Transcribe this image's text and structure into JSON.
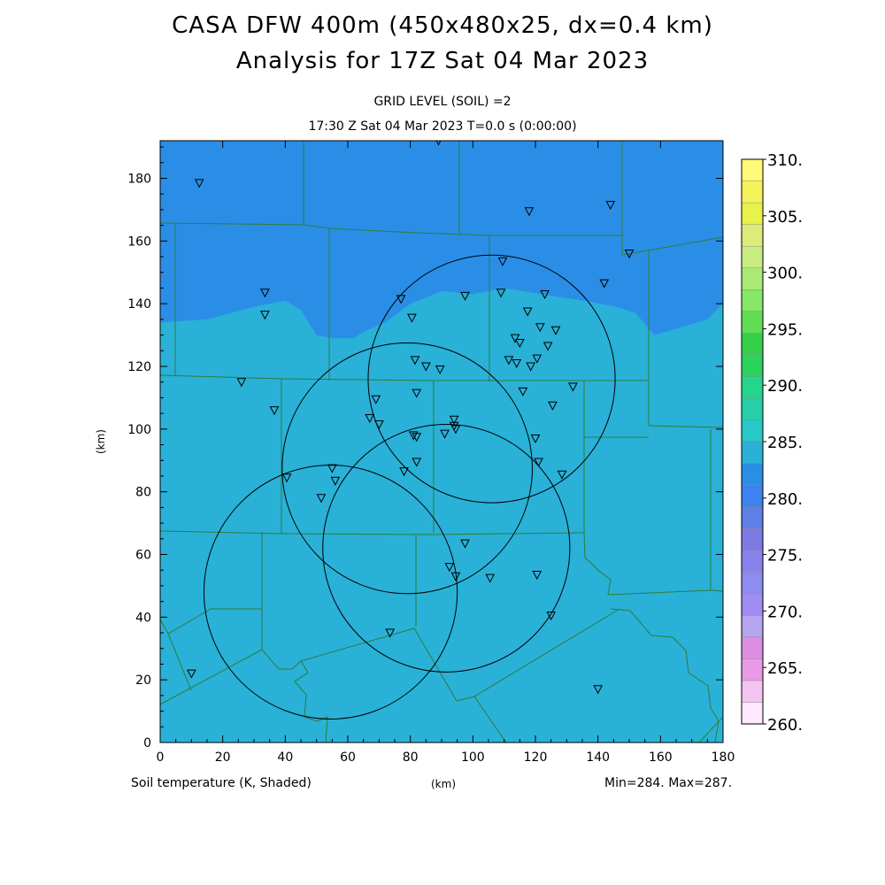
{
  "title": "CASA DFW 400m (450x480x25, dx=0.4 km)",
  "subtitle": "Analysis for 17Z Sat 04 Mar 2023",
  "level_label": "GRID LEVEL (SOIL) =2",
  "time_label": "17:30 Z Sat 04 Mar 2023    T=0.0 s (0:00:00)",
  "field_label": "Soil temperature (K, Shaded)",
  "x_unit_label": "(km)",
  "minmax_label": "Min=284. Max=287.",
  "colors": {
    "cold_band": "#2a8ee6",
    "warm_band": "#29b1d8",
    "border_line": "#2e7d3a",
    "frame": "#000000"
  },
  "chart_data": {
    "type": "heatmap",
    "xlabel": "",
    "ylabel": "(km)",
    "xlim": [
      0,
      180
    ],
    "ylim": [
      0,
      192
    ],
    "x_ticks": [
      "0",
      "20",
      "40",
      "60",
      "80",
      "100",
      "120",
      "140",
      "160",
      "180"
    ],
    "y_ticks": [
      "0",
      "20",
      "40",
      "60",
      "80",
      "100",
      "120",
      "140",
      "160",
      "180"
    ],
    "colorbar": {
      "labels": [
        "260.",
        "265.",
        "270.",
        "275.",
        "280.",
        "285.",
        "290.",
        "295.",
        "300.",
        "305.",
        "310."
      ],
      "segments": [
        "#fde8fd",
        "#f4c4f2",
        "#e89ae6",
        "#db8ee2",
        "#b6a4ee",
        "#a08cf2",
        "#8e8cef",
        "#8a82ec",
        "#7e7ae3",
        "#5e7fe8",
        "#3c82f0",
        "#2a8ee6",
        "#29b1d8",
        "#27c8c6",
        "#26cfa7",
        "#25d58a",
        "#2cd35c",
        "#34d04a",
        "#5fde55",
        "#86e668",
        "#a8e978",
        "#c8ec80",
        "#ddec79",
        "#e7f24a",
        "#f4f35a",
        "#fffa78"
      ]
    },
    "field_values": [
      284,
      285,
      286,
      287
    ],
    "boundary_285_km": [
      [
        0,
        134
      ],
      [
        15,
        135
      ],
      [
        30,
        139
      ],
      [
        40,
        141
      ],
      [
        45,
        138
      ],
      [
        50,
        130
      ],
      [
        55,
        129
      ],
      [
        62,
        129
      ],
      [
        65,
        131
      ],
      [
        72,
        134
      ],
      [
        80,
        140
      ],
      [
        90,
        144
      ],
      [
        100,
        143
      ],
      [
        110,
        145
      ],
      [
        122,
        143
      ],
      [
        135,
        141
      ],
      [
        146,
        139
      ],
      [
        152,
        137
      ],
      [
        158,
        130
      ],
      [
        165,
        132
      ],
      [
        175,
        135
      ],
      [
        180,
        140
      ]
    ],
    "radar_circles_km": [
      {
        "cx": 106,
        "cy": 116,
        "r": 39.5
      },
      {
        "cx": 79,
        "cy": 87.5,
        "r": 40
      },
      {
        "cx": 91.5,
        "cy": 62,
        "r": 39.5
      },
      {
        "cx": 54.5,
        "cy": 48,
        "r": 40.5
      }
    ],
    "stations_km": [
      [
        12.5,
        178.5
      ],
      [
        118,
        169.5
      ],
      [
        144,
        171.5
      ],
      [
        150,
        156
      ],
      [
        109.5,
        153.5
      ],
      [
        142,
        146.5
      ],
      [
        33.5,
        143.5
      ],
      [
        77,
        141.5
      ],
      [
        97.5,
        142.5
      ],
      [
        109,
        143.5
      ],
      [
        123,
        143
      ],
      [
        33.5,
        136.5
      ],
      [
        80.5,
        135.5
      ],
      [
        117.5,
        137.5
      ],
      [
        121.5,
        132.5
      ],
      [
        126.5,
        131.5
      ],
      [
        113.5,
        129
      ],
      [
        115,
        127.5
      ],
      [
        124,
        126.5
      ],
      [
        81.5,
        122
      ],
      [
        85,
        120
      ],
      [
        89.5,
        119
      ],
      [
        111.5,
        122
      ],
      [
        114,
        121
      ],
      [
        118.5,
        120
      ],
      [
        120.5,
        122.5
      ],
      [
        26,
        115
      ],
      [
        82,
        111.5
      ],
      [
        116,
        112
      ],
      [
        132,
        113.5
      ],
      [
        36.5,
        106
      ],
      [
        69,
        109.5
      ],
      [
        125.5,
        107.5
      ],
      [
        67,
        103.5
      ],
      [
        70,
        101.5
      ],
      [
        94,
        103
      ],
      [
        94,
        101
      ],
      [
        94.5,
        100
      ],
      [
        81,
        98
      ],
      [
        82,
        97.5
      ],
      [
        91,
        98.5
      ],
      [
        120,
        97
      ],
      [
        82,
        89.5
      ],
      [
        78,
        86.5
      ],
      [
        121,
        89.5
      ],
      [
        128.5,
        85.5
      ],
      [
        55,
        87.5
      ],
      [
        56,
        83.5
      ],
      [
        40.5,
        84.5
      ],
      [
        51.5,
        78
      ],
      [
        97.5,
        63.5
      ],
      [
        92.5,
        56
      ],
      [
        94.5,
        53
      ],
      [
        105.5,
        52.5
      ],
      [
        120.5,
        53.5
      ],
      [
        125,
        40.5
      ],
      [
        73.5,
        35
      ],
      [
        10,
        22
      ],
      [
        140,
        17
      ],
      [
        89,
        192
      ]
    ]
  }
}
